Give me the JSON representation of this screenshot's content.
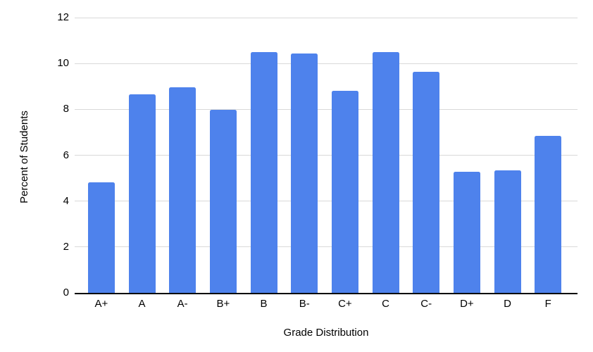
{
  "chart_data": {
    "type": "bar",
    "title": "",
    "xlabel": "Grade Distribution",
    "ylabel": "Percent of Students",
    "categories": [
      "A+",
      "A",
      "A-",
      "B+",
      "B",
      "B-",
      "C+",
      "C",
      "C-",
      "D+",
      "D",
      "F"
    ],
    "values": [
      4.81,
      8.65,
      8.96,
      7.97,
      10.51,
      10.42,
      8.82,
      10.5,
      9.65,
      5.27,
      5.35,
      6.85
    ],
    "ylim": [
      0,
      12
    ],
    "yticks": [
      0,
      2,
      4,
      6,
      8,
      10,
      12
    ],
    "grid": true,
    "legend": false,
    "layout_hints": {
      "gridlines": "horizontal only",
      "bar_corner": "slightly rounded tops",
      "y_axis_line": "none",
      "x_axis_line": "solid black"
    },
    "colors": {
      "bar": "#4e82ec",
      "gridline": "#d9d9d9",
      "axis_line": "#000000",
      "text": "#000000",
      "background": "#ffffff"
    }
  }
}
